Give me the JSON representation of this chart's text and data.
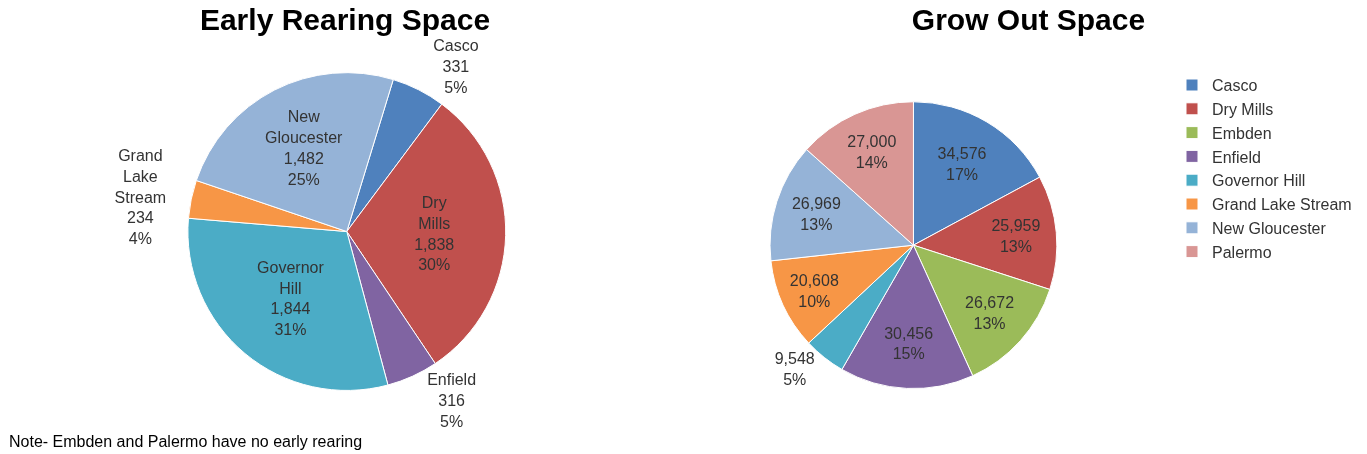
{
  "chart_data": [
    {
      "type": "pie",
      "title": "Early Rearing Space",
      "categories": [
        "Casco",
        "Dry Mills",
        "Enfield",
        "Governor Hill",
        "Grand Lake Stream",
        "New Gloucester"
      ],
      "values": [
        331,
        1838,
        316,
        1844,
        234,
        1482
      ],
      "value_labels": [
        "331\n5%",
        "1,838\n30%",
        "316\n5%",
        "1,844\n31%",
        "234\n4%",
        "1,482\n25%"
      ],
      "colors": [
        "#4f81bd",
        "#c0504d",
        "#8064a2",
        "#4bacc6",
        "#f79646",
        "#95b3d7"
      ],
      "legend": false,
      "annotations": [
        "Note- Embden and Palermo have no early rearing"
      ]
    },
    {
      "type": "pie",
      "title": "Grow Out Space",
      "categories": [
        "Casco",
        "Dry Mills",
        "Embden",
        "Enfield",
        "Governor Hill",
        "Grand Lake Stream",
        "New Gloucester",
        "Palermo"
      ],
      "values": [
        34576,
        25959,
        26672,
        30456,
        9548,
        20608,
        26969,
        27000
      ],
      "value_labels": [
        "34,576\n17%",
        "25,959\n13%",
        "26,672\n13%",
        "30,456\n15%",
        "9,548\n5%",
        "20,608\n10%",
        "26,969\n13%",
        "27,000\n14%"
      ],
      "colors": [
        "#4f81bd",
        "#c0504d",
        "#9bbb59",
        "#8064a2",
        "#4bacc6",
        "#f79646",
        "#95b3d7",
        "#d99694"
      ],
      "legend": "right"
    }
  ]
}
